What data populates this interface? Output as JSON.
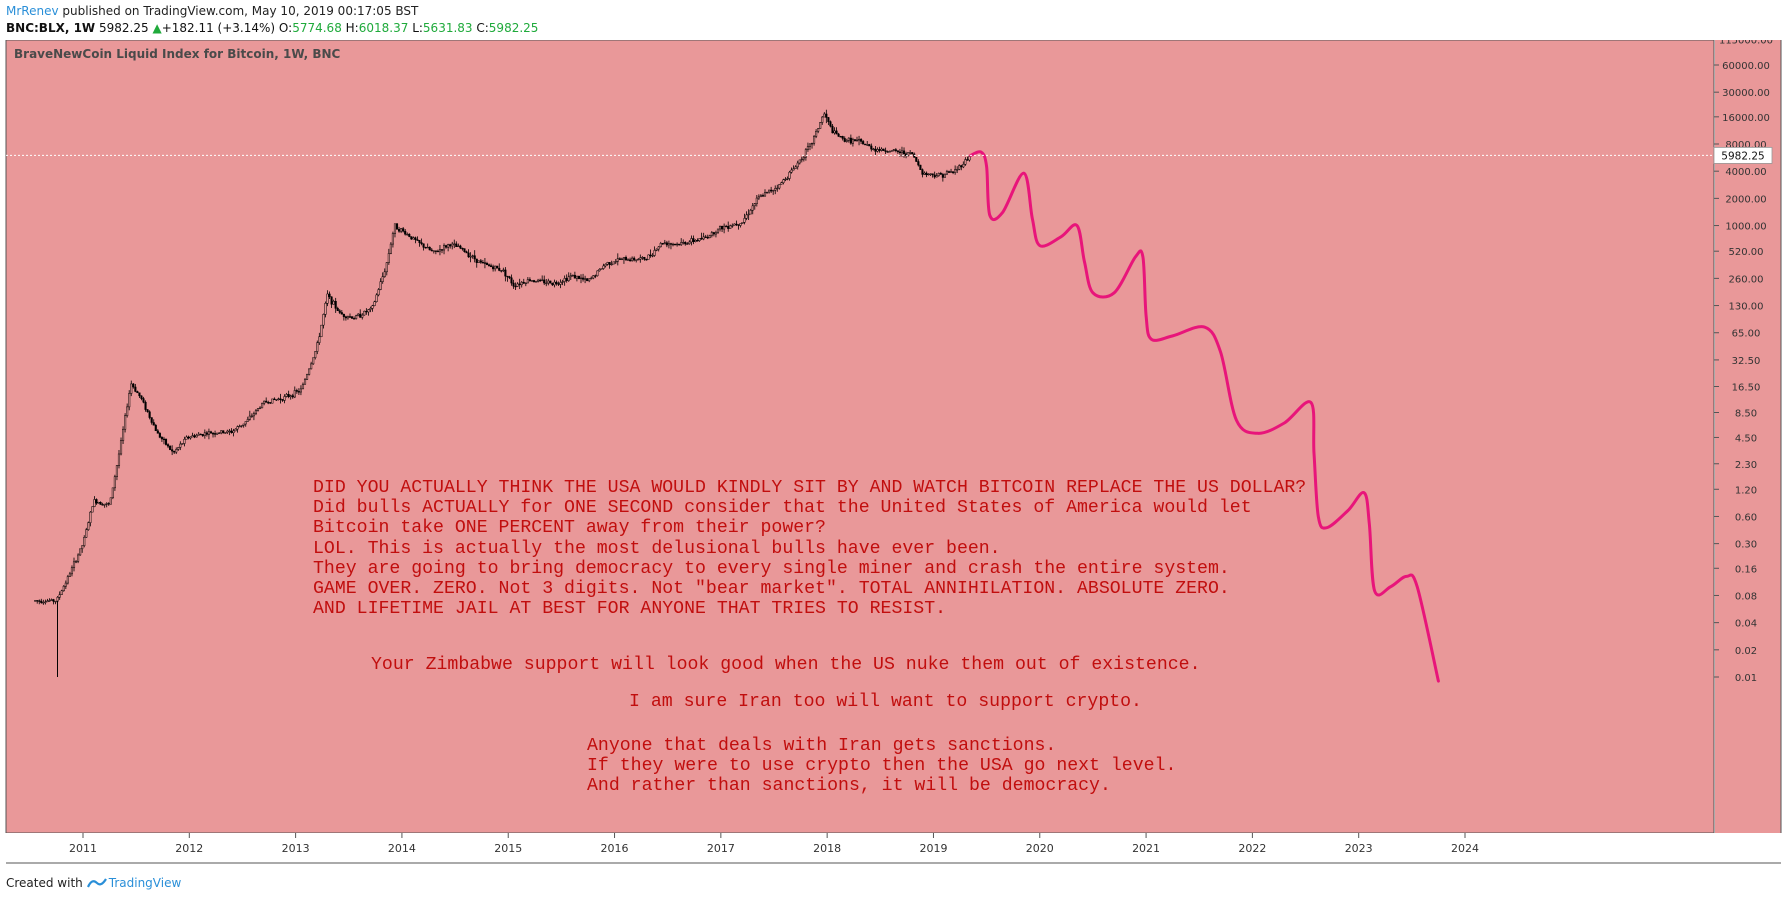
{
  "header": {
    "author": "MrRenev",
    "published_text": "published on TradingView.com, May 10, 2019 00:17:05 BST",
    "symbol": "BNC:BLX, 1W",
    "last": "5982.25",
    "change_arrow": "▲",
    "change": "+182.11 (+3.14%)",
    "ohlc": [
      {
        "label": "O:",
        "value": "5774.68"
      },
      {
        "label": "H:",
        "value": "6018.37"
      },
      {
        "label": "L:",
        "value": "5631.83"
      },
      {
        "label": "C:",
        "value": "5982.25"
      }
    ]
  },
  "footer": {
    "created_with": "Created with",
    "brand": "TradingView"
  },
  "colors": {
    "chart_bg": "#e99899",
    "candle": "#000000",
    "projection": "#e8157a",
    "note_text": "#c10e0e",
    "price_up": "#1faa3b",
    "author": "#2a8fd8"
  },
  "chart_data": {
    "type": "candlestick",
    "title": "BraveNewCoin Liquid Index for Bitcoin, 1W, BNC",
    "y_scale": "log",
    "x_ticks": [
      "2011",
      "2012",
      "2013",
      "2014",
      "2015",
      "2016",
      "2017",
      "2018",
      "2019",
      "2020",
      "2021",
      "2022",
      "2023",
      "2024"
    ],
    "y_ticks": [
      "115000.00",
      "60000.00",
      "30000.00",
      "16000.00",
      "8000.00",
      "4000.00",
      "2000.00",
      "1000.00",
      "520.00",
      "260.00",
      "130.00",
      "65.00",
      "32.50",
      "16.50",
      "8.50",
      "4.50",
      "2.30",
      "1.20",
      "0.60",
      "0.30",
      "0.16",
      "0.08",
      "0.04",
      "0.02",
      "0.01"
    ],
    "last_price_label": "5982.25",
    "last_price": 5982.25,
    "ylim": [
      0.005,
      115000
    ],
    "xlim": [
      2010.3,
      2024.3
    ],
    "price_path": [
      [
        2010.55,
        0.07
      ],
      [
        2010.75,
        0.07
      ],
      [
        2010.85,
        0.12
      ],
      [
        2011.0,
        0.3
      ],
      [
        2011.1,
        0.9
      ],
      [
        2011.25,
        0.8
      ],
      [
        2011.35,
        3.5
      ],
      [
        2011.45,
        18
      ],
      [
        2011.55,
        12
      ],
      [
        2011.7,
        5
      ],
      [
        2011.85,
        3
      ],
      [
        2011.98,
        4.5
      ],
      [
        2012.15,
        5
      ],
      [
        2012.4,
        5.2
      ],
      [
        2012.55,
        7
      ],
      [
        2012.7,
        11
      ],
      [
        2012.9,
        12.5
      ],
      [
        2013.05,
        15
      ],
      [
        2013.2,
        45
      ],
      [
        2013.3,
        170
      ],
      [
        2013.42,
        105
      ],
      [
        2013.55,
        95
      ],
      [
        2013.72,
        120
      ],
      [
        2013.85,
        350
      ],
      [
        2013.93,
        1000
      ],
      [
        2014.05,
        800
      ],
      [
        2014.15,
        650
      ],
      [
        2014.3,
        500
      ],
      [
        2014.45,
        620
      ],
      [
        2014.55,
        560
      ],
      [
        2014.75,
        380
      ],
      [
        2014.95,
        320
      ],
      [
        2015.05,
        220
      ],
      [
        2015.2,
        250
      ],
      [
        2015.45,
        230
      ],
      [
        2015.6,
        280
      ],
      [
        2015.75,
        240
      ],
      [
        2015.92,
        380
      ],
      [
        2016.05,
        420
      ],
      [
        2016.3,
        430
      ],
      [
        2016.45,
        650
      ],
      [
        2016.6,
        620
      ],
      [
        2016.85,
        730
      ],
      [
        2017.0,
        950
      ],
      [
        2017.2,
        1100
      ],
      [
        2017.35,
        2000
      ],
      [
        2017.55,
        2800
      ],
      [
        2017.7,
        4500
      ],
      [
        2017.85,
        8000
      ],
      [
        2017.97,
        17500
      ],
      [
        2018.05,
        11000
      ],
      [
        2018.15,
        9000
      ],
      [
        2018.3,
        8500
      ],
      [
        2018.45,
        7000
      ],
      [
        2018.6,
        6700
      ],
      [
        2018.8,
        6200
      ],
      [
        2018.9,
        3800
      ],
      [
        2019.05,
        3600
      ],
      [
        2019.2,
        4000
      ],
      [
        2019.35,
        5982
      ]
    ],
    "projection_path": [
      [
        2019.35,
        5982
      ],
      [
        2019.45,
        6500
      ],
      [
        2019.5,
        4500
      ],
      [
        2019.53,
        1300
      ],
      [
        2019.65,
        1400
      ],
      [
        2019.85,
        3800
      ],
      [
        2019.93,
        1200
      ],
      [
        2020.0,
        600
      ],
      [
        2020.2,
        750
      ],
      [
        2020.35,
        1000
      ],
      [
        2020.42,
        400
      ],
      [
        2020.5,
        180
      ],
      [
        2020.7,
        180
      ],
      [
        2020.9,
        450
      ],
      [
        2020.97,
        450
      ],
      [
        2021.0,
        100
      ],
      [
        2021.05,
        55
      ],
      [
        2021.25,
        60
      ],
      [
        2021.55,
        75
      ],
      [
        2021.7,
        40
      ],
      [
        2021.85,
        7
      ],
      [
        2022.05,
        5
      ],
      [
        2022.3,
        6.5
      ],
      [
        2022.55,
        11
      ],
      [
        2022.58,
        3
      ],
      [
        2022.62,
        0.6
      ],
      [
        2022.7,
        0.45
      ],
      [
        2022.9,
        0.7
      ],
      [
        2023.05,
        1.1
      ],
      [
        2023.1,
        0.5
      ],
      [
        2023.15,
        0.09
      ],
      [
        2023.3,
        0.1
      ],
      [
        2023.45,
        0.13
      ],
      [
        2023.55,
        0.1
      ],
      [
        2023.75,
        0.009
      ]
    ],
    "notes": [
      {
        "lines": [
          "DID YOU ACTUALLY THINK THE USA WOULD KINDLY SIT BY AND WATCH BITCOIN REPLACE THE US DOLLAR?",
          "Did bulls ACTUALLY for ONE SECOND consider that the United States of America would let",
          "Bitcoin take ONE PERCENT away from their power?",
          "LOL. This is actually the most delusional bulls have ever been.",
          "They are going to bring democracy to every single miner and crash the entire system.",
          "GAME OVER. ZERO. Not 3 digits. Not \"bear market\". TOTAL ANNIHILATION. ABSOLUTE ZERO.",
          "AND LIFETIME JAIL AT BEST FOR ANYONE THAT TRIES TO RESIST."
        ]
      },
      {
        "lines": [
          "Your Zimbabwe support will look good when the US nuke them out of existence."
        ]
      },
      {
        "lines": [
          "I am sure Iran too will want to support crypto."
        ]
      },
      {
        "lines": [
          "Anyone that deals with Iran gets sanctions.",
          "If they were to use crypto then the USA go next level.",
          "And rather than sanctions, it will be democracy."
        ]
      }
    ]
  }
}
